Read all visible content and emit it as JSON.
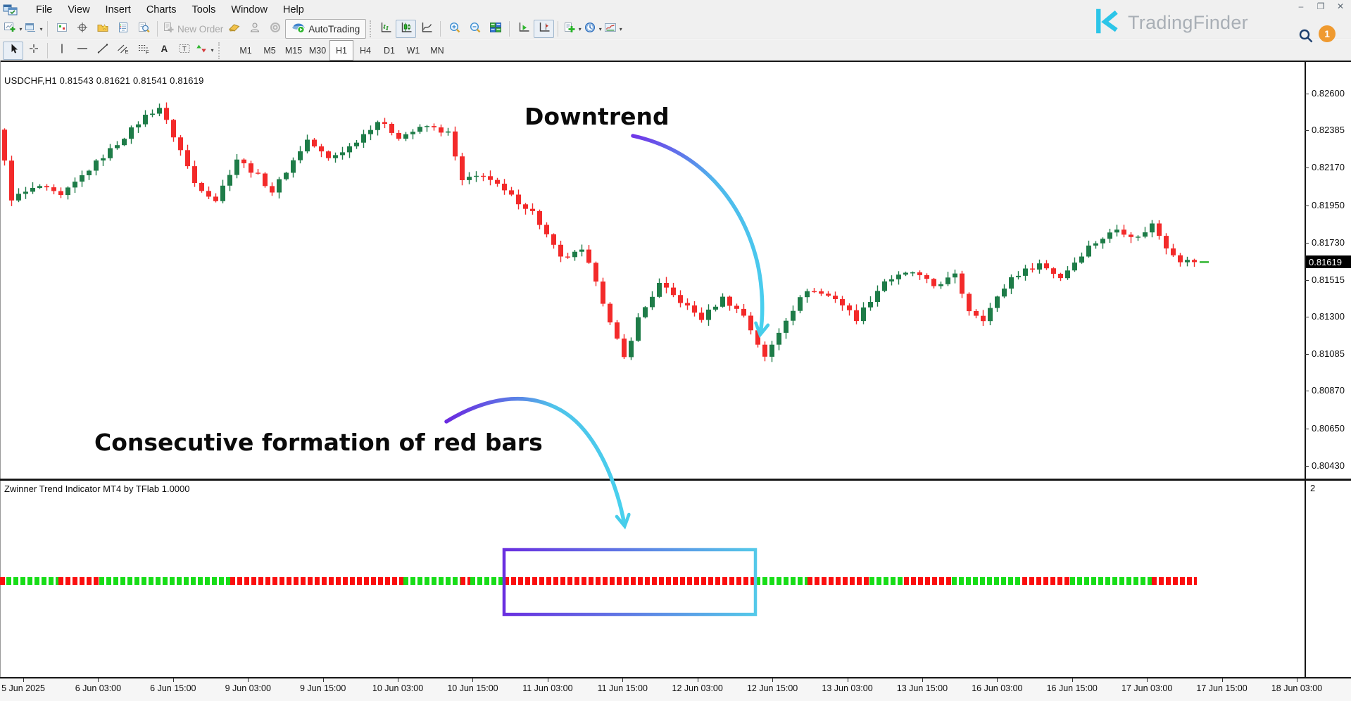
{
  "titlebar": {
    "menu": [
      "File",
      "View",
      "Insert",
      "Charts",
      "Tools",
      "Window",
      "Help"
    ],
    "window_controls": [
      {
        "name": "minimize-button",
        "glyph": "–"
      },
      {
        "name": "maximize-button",
        "glyph": "❐"
      },
      {
        "name": "close-button",
        "glyph": "✕"
      }
    ]
  },
  "toolbar": {
    "row1": [
      {
        "icon": "new-chart",
        "dd": true
      },
      {
        "icon": "profiles",
        "dd": true
      },
      {
        "sep": true
      },
      {
        "icon": "market-tile"
      },
      {
        "icon": "crosshair-target"
      },
      {
        "icon": "navigator-star"
      },
      {
        "icon": "terminal-list"
      },
      {
        "icon": "tester-search"
      },
      {
        "sep": true
      },
      {
        "icon": "new-order",
        "label": "New Order",
        "disabled": true
      },
      {
        "icon": "metaeditor-tag"
      },
      {
        "icon": "expert-person"
      },
      {
        "icon": "target-circles"
      },
      {
        "icon": "autotrading",
        "label": "AutoTrading",
        "framed": true
      },
      {
        "sep": true,
        "dotted": true
      },
      {
        "icon": "bars-chart"
      },
      {
        "icon": "candles-chart",
        "pressed": true
      },
      {
        "icon": "line-chart"
      },
      {
        "sep": true
      },
      {
        "icon": "zoom-in"
      },
      {
        "icon": "zoom-out"
      },
      {
        "icon": "tile-windows"
      },
      {
        "sep": true
      },
      {
        "icon": "auto-scroll"
      },
      {
        "icon": "chart-shift",
        "pressed": true
      },
      {
        "sep": true
      },
      {
        "icon": "add-indicator",
        "dd": true
      },
      {
        "icon": "periods-clock",
        "dd": true
      },
      {
        "icon": "templates-chart",
        "dd": true
      }
    ],
    "row2": [
      {
        "icon": "cursor-arrow",
        "pressed": true
      },
      {
        "icon": "crosshair-plus"
      },
      {
        "sep": true
      },
      {
        "icon": "vertical-line"
      },
      {
        "icon": "horizontal-line"
      },
      {
        "icon": "trend-line"
      },
      {
        "icon": "equidistant-channel"
      },
      {
        "icon": "fibonacci"
      },
      {
        "icon": "text-a"
      },
      {
        "icon": "text-label"
      },
      {
        "icon": "arrows-shapes",
        "dd": true
      },
      {
        "sep": true,
        "dotted": true
      }
    ]
  },
  "timeframes": {
    "items": [
      "M1",
      "M5",
      "M15",
      "M30",
      "H1",
      "H4",
      "D1",
      "W1",
      "MN"
    ],
    "active": "H1"
  },
  "main_chart": {
    "symbol_info": "USDCHF,H1  0.81543 0.81621 0.81541 0.81619",
    "price_labels": [
      "0.82600",
      "0.82385",
      "0.82170",
      "0.81950",
      "0.81730",
      "0.81515",
      "0.81300",
      "0.81085",
      "0.80870",
      "0.80650",
      "0.80430"
    ],
    "current_price": "0.81619",
    "candle_up_color": "#1e7c48",
    "candle_down_color": "#f32a2a"
  },
  "annotations": {
    "downtrend_label": "Downtrend",
    "red_bars_label": "Consecutive formation of red bars"
  },
  "indicator_pane": {
    "title": "Zwinner Trend Indicator MT4 by TFlab 1.0000",
    "scale_label": "2",
    "dot_green": "#17dd17",
    "dot_red": "#fb0e0e",
    "segments": [
      [
        0,
        9,
        "r"
      ],
      [
        9,
        83,
        "g"
      ],
      [
        83,
        141,
        "r"
      ],
      [
        141,
        327,
        "g"
      ],
      [
        327,
        573,
        "r"
      ],
      [
        573,
        654,
        "g"
      ],
      [
        654,
        668,
        "r"
      ],
      [
        668,
        716,
        "g"
      ],
      [
        716,
        1073,
        "r"
      ],
      [
        1073,
        1147,
        "g"
      ],
      [
        1147,
        1235,
        "r"
      ],
      [
        1235,
        1284,
        "g"
      ],
      [
        1284,
        1352,
        "r"
      ],
      [
        1352,
        1452,
        "g"
      ],
      [
        1452,
        1520,
        "r"
      ],
      [
        1520,
        1636,
        "g"
      ],
      [
        1636,
        1700,
        "r"
      ]
    ]
  },
  "time_axis": {
    "labels": [
      "5 Jun 2025",
      "6 Jun 03:00",
      "6 Jun 15:00",
      "9 Jun 03:00",
      "9 Jun 15:00",
      "10 Jun 03:00",
      "10 Jun 15:00",
      "11 Jun 03:00",
      "11 Jun 15:00",
      "12 Jun 03:00",
      "12 Jun 15:00",
      "13 Jun 03:00",
      "13 Jun 15:00",
      "16 Jun 03:00",
      "16 Jun 15:00",
      "17 Jun 03:00",
      "17 Jun 15:00",
      "18 Jun 03:00"
    ]
  },
  "branding": {
    "name": "TradingFinder",
    "badge_count": "1"
  },
  "chart_data": {
    "type": "candlestick",
    "symbol": "USDCHF",
    "timeframe": "H1",
    "latest_ohlc": {
      "open": 0.81543,
      "high": 0.81621,
      "low": 0.81541,
      "close": 0.81619
    },
    "price_axis_range": [
      0.8043,
      0.826
    ],
    "bars": 170,
    "close_path_anchors": [
      [
        0,
        0.8221
      ],
      [
        1,
        0.8199
      ],
      [
        5,
        0.8206
      ],
      [
        8,
        0.82
      ],
      [
        12,
        0.8216
      ],
      [
        16,
        0.8231
      ],
      [
        20,
        0.8247
      ],
      [
        22,
        0.8252
      ],
      [
        25,
        0.8227
      ],
      [
        27,
        0.8208
      ],
      [
        30,
        0.8198
      ],
      [
        33,
        0.8222
      ],
      [
        36,
        0.8212
      ],
      [
        38,
        0.8203
      ],
      [
        43,
        0.8233
      ],
      [
        46,
        0.8222
      ],
      [
        49,
        0.8229
      ],
      [
        53,
        0.8244
      ],
      [
        56,
        0.8235
      ],
      [
        60,
        0.8241
      ],
      [
        63,
        0.8237
      ],
      [
        65,
        0.8209
      ],
      [
        68,
        0.8213
      ],
      [
        71,
        0.8203
      ],
      [
        75,
        0.8191
      ],
      [
        79,
        0.8164
      ],
      [
        82,
        0.8168
      ],
      [
        84,
        0.8152
      ],
      [
        86,
        0.8126
      ],
      [
        88,
        0.8106
      ],
      [
        90,
        0.8129
      ],
      [
        93,
        0.8149
      ],
      [
        96,
        0.8139
      ],
      [
        99,
        0.8129
      ],
      [
        102,
        0.8141
      ],
      [
        105,
        0.8131
      ],
      [
        108,
        0.8106
      ],
      [
        111,
        0.8129
      ],
      [
        114,
        0.8146
      ],
      [
        118,
        0.8141
      ],
      [
        121,
        0.8129
      ],
      [
        125,
        0.8151
      ],
      [
        129,
        0.8156
      ],
      [
        132,
        0.8148
      ],
      [
        135,
        0.8154
      ],
      [
        137,
        0.8134
      ],
      [
        139,
        0.8129
      ],
      [
        143,
        0.8153
      ],
      [
        147,
        0.8161
      ],
      [
        150,
        0.8153
      ],
      [
        154,
        0.8171
      ],
      [
        158,
        0.8181
      ],
      [
        161,
        0.8176
      ],
      [
        163,
        0.8184
      ],
      [
        165,
        0.8171
      ],
      [
        167,
        0.8163
      ],
      [
        169,
        0.81619
      ]
    ],
    "indicator": {
      "name": "Zwinner Trend Indicator MT4 by TFlab",
      "value": "1.0000"
    }
  }
}
